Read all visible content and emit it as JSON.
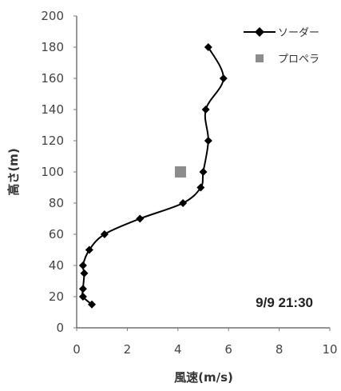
{
  "chart_data": {
    "type": "scatter",
    "xlabel": "風速(m/s)",
    "ylabel": "高さ(m)",
    "xlim": [
      0,
      10
    ],
    "ylim": [
      0,
      200
    ],
    "xticks": [
      "0",
      "2",
      "4",
      "6",
      "8",
      "10"
    ],
    "yticks": [
      "0",
      "20",
      "40",
      "60",
      "80",
      "100",
      "120",
      "140",
      "160",
      "180",
      "200"
    ],
    "legend_position": "top-right",
    "annotation": "9/9 21:30",
    "series": [
      {
        "name": "ソーダー",
        "style": "line-diamond",
        "color": "#000000",
        "points": [
          {
            "x": 0.6,
            "y": 15
          },
          {
            "x": 0.25,
            "y": 20
          },
          {
            "x": 0.25,
            "y": 25
          },
          {
            "x": 0.3,
            "y": 35
          },
          {
            "x": 0.25,
            "y": 40
          },
          {
            "x": 0.5,
            "y": 50
          },
          {
            "x": 1.1,
            "y": 60
          },
          {
            "x": 2.5,
            "y": 70
          },
          {
            "x": 4.2,
            "y": 80
          },
          {
            "x": 4.9,
            "y": 90
          },
          {
            "x": 5.0,
            "y": 100
          },
          {
            "x": 5.2,
            "y": 120
          },
          {
            "x": 5.1,
            "y": 140
          },
          {
            "x": 5.8,
            "y": 160
          },
          {
            "x": 5.2,
            "y": 180
          }
        ]
      },
      {
        "name": "プロペラ",
        "style": "square",
        "color": "#8c8c8c",
        "points": [
          {
            "x": 4.1,
            "y": 100
          }
        ]
      }
    ]
  }
}
